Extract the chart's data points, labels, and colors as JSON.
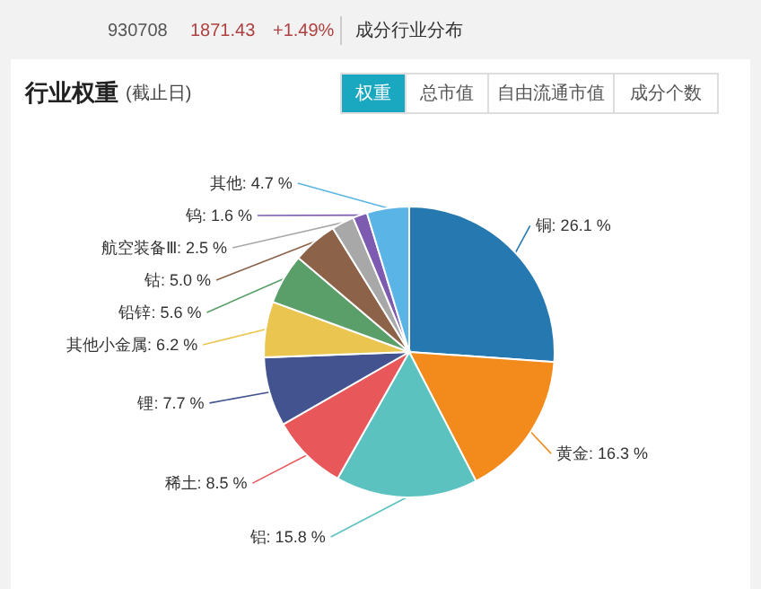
{
  "chart_data": {
    "type": "pie",
    "title": "行业权重",
    "subtitle": "(截止日)",
    "annotations": [
      "930708",
      "1871.43",
      "+1.49%",
      "成分行业分布",
      "权重",
      "总市值",
      "自由流通市值",
      "成分个数"
    ],
    "categories": [
      "铜",
      "黄金",
      "铝",
      "稀土",
      "锂",
      "其他小金属",
      "铅锌",
      "钴",
      "航空装备Ⅲ",
      "钨",
      "其他"
    ],
    "value_labels": [
      "26.1 %",
      "16.3 %",
      "15.8 %",
      "8.5 %",
      "7.7 %",
      "6.2 %",
      "5.6 %",
      "5.0 %",
      "2.5 %",
      "1.6 %",
      "4.7 %"
    ],
    "values": [
      26.1,
      16.3,
      15.8,
      8.5,
      7.7,
      6.2,
      5.6,
      5.0,
      2.5,
      1.6,
      4.7
    ],
    "colors": [
      "#2678b0",
      "#f28a1c",
      "#5bc2c0",
      "#e8585a",
      "#435390",
      "#eac54f",
      "#5a9e6a",
      "#8c6248",
      "#a8a8a8",
      "#7d5bb0",
      "#5ab4e5"
    ]
  }
}
